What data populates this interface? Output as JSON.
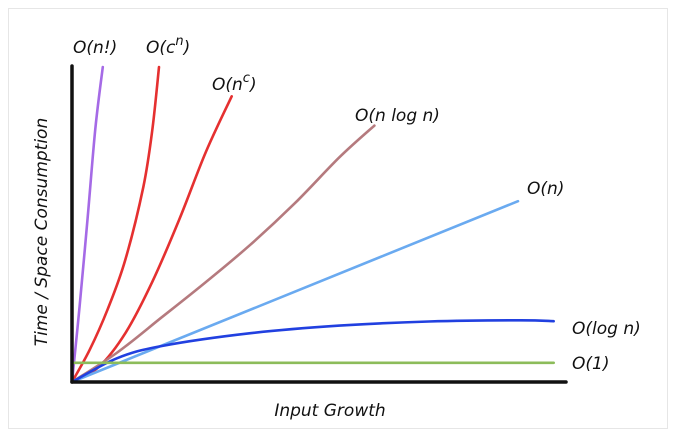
{
  "chart_data": {
    "type": "line",
    "title": "",
    "xlabel": "Input Growth",
    "ylabel": "Time / Space Consumption",
    "xlim": [
      0,
      100
    ],
    "ylim": [
      0,
      100
    ],
    "grid": false,
    "series": [
      {
        "name": "O(n!)",
        "color": "#a56ae6",
        "x": [
          0,
          1.7,
          3.5,
          5.2,
          6.9
        ],
        "y": [
          0,
          24,
          52,
          80,
          100
        ]
      },
      {
        "name": "O(c^n)",
        "color": "#e53030",
        "x": [
          0,
          4,
          8,
          12,
          16,
          18,
          19.5
        ],
        "y": [
          0,
          10.3,
          23.1,
          39,
          62,
          80,
          100
        ]
      },
      {
        "name": "O(n^c)",
        "color": "#e53030",
        "x": [
          0,
          6,
          12,
          18,
          24,
          30,
          35.8
        ],
        "y": [
          0,
          4.8,
          15.6,
          31.8,
          51.4,
          73,
          90.7
        ]
      },
      {
        "name": "O(n log n)",
        "color": "#b57a7e",
        "x": [
          0,
          10,
          20,
          30,
          40,
          50,
          60,
          67.8
        ],
        "y": [
          0,
          9.2,
          20.4,
          31.7,
          43.6,
          56.8,
          71.4,
          81.4
        ]
      },
      {
        "name": "O(n)",
        "color": "#6aaaf0",
        "x": [
          0,
          100
        ],
        "y": [
          0,
          57.4
        ]
      },
      {
        "name": "O(log n)",
        "color": "#2140e0",
        "x": [
          0,
          10,
          20,
          40,
          60,
          80,
          100,
          108
        ],
        "y": [
          0,
          7.5,
          11.4,
          15.5,
          17.9,
          19.2,
          19.6,
          19.3
        ]
      },
      {
        "name": "O(1)",
        "color": "#8cbc5a",
        "x": [
          0,
          108
        ],
        "y": [
          6.1,
          6.1
        ]
      }
    ],
    "labels": {
      "o_n_fact": "O(n!)",
      "o_c_n_base": "O(c",
      "o_c_n_sup": "n",
      "o_c_n_close": ")",
      "o_n_c_base": "O(n",
      "o_n_c_sup": "c",
      "o_n_c_close": ")",
      "o_nlogn": "O(n log n)",
      "o_n": "O(n)",
      "o_logn": "O(log n)",
      "o_1": "O(1)"
    }
  }
}
